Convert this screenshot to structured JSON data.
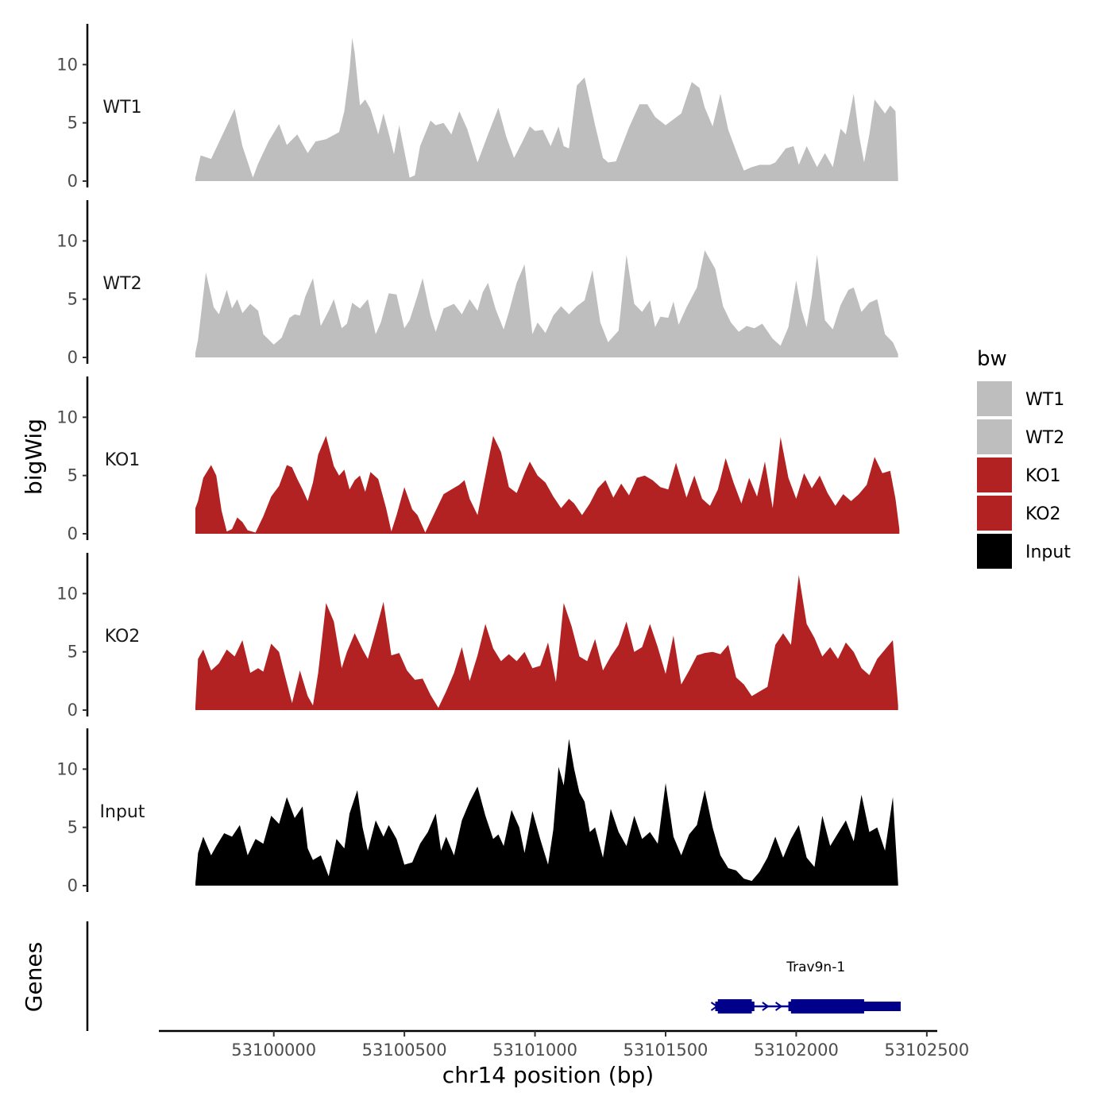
{
  "chart_data": {
    "type": "area",
    "x_axis": {
      "label": "chr14 position (bp)",
      "range": [
        53099560,
        53102540
      ],
      "ticks": [
        53100000,
        53100500,
        53101000,
        53101500,
        53102000,
        53102500
      ],
      "tick_labels": [
        "53100000",
        "53100500",
        "53101000",
        "53101500",
        "53102000",
        "53102500"
      ]
    },
    "y_axis": {
      "label": "bigWig",
      "range": [
        0,
        13.5
      ],
      "ticks": [
        0,
        5,
        10
      ],
      "tick_labels": [
        "0",
        "5",
        "10"
      ]
    },
    "genes_axis_label": "Genes",
    "legend": {
      "title": "bw",
      "entries": [
        {
          "label": "WT1",
          "color": "#bebebe"
        },
        {
          "label": "WT2",
          "color": "#bebebe"
        },
        {
          "label": "KO1",
          "color": "#b22222"
        },
        {
          "label": "KO2",
          "color": "#b22222"
        },
        {
          "label": "Input",
          "color": "#000000"
        }
      ]
    },
    "series": [
      {
        "name": "WT1",
        "color": "#bebebe",
        "x": [
          53099700,
          53099720,
          53099760,
          53099800,
          53099850,
          53099880,
          53099920,
          53099940,
          53099980,
          53100020,
          53100050,
          53100090,
          53100130,
          53100160,
          53100200,
          53100250,
          53100270,
          53100290,
          53100300,
          53100310,
          53100330,
          53100350,
          53100370,
          53100400,
          53100420,
          53100440,
          53100460,
          53100480,
          53100520,
          53100540,
          53100560,
          53100600,
          53100620,
          53100650,
          53100680,
          53100710,
          53100740,
          53100780,
          53100820,
          53100860,
          53100890,
          53100920,
          53100950,
          53100980,
          53101000,
          53101030,
          53101060,
          53101090,
          53101110,
          53101130,
          53101160,
          53101190,
          53101230,
          53101260,
          53101280,
          53101310,
          53101360,
          53101400,
          53101430,
          53101460,
          53101500,
          53101560,
          53101600,
          53101630,
          53101650,
          53101680,
          53101710,
          53101740,
          53101780,
          53101800,
          53101830,
          53101860,
          53101900,
          53101920,
          53101960,
          53101990,
          53102010,
          53102040,
          53102060,
          53102080,
          53102110,
          53102140,
          53102170,
          53102190,
          53102220,
          53102240,
          53102260,
          53102280,
          53102300,
          53102340,
          53102360,
          53102380,
          53102390
        ],
        "y": [
          0.3,
          2.2,
          1.9,
          3.8,
          6.2,
          3.0,
          0.3,
          1.5,
          3.4,
          4.9,
          3.1,
          4.0,
          2.4,
          3.4,
          3.6,
          4.2,
          6.0,
          9.5,
          12.3,
          11.0,
          6.5,
          7.0,
          6.2,
          4.0,
          5.8,
          4.1,
          2.3,
          4.8,
          0.3,
          0.5,
          3.0,
          5.2,
          4.8,
          5.0,
          4.0,
          6.0,
          4.5,
          1.6,
          4.0,
          6.3,
          3.8,
          2.0,
          3.3,
          4.7,
          4.3,
          4.4,
          3.0,
          4.7,
          3.0,
          2.8,
          8.2,
          8.9,
          4.8,
          2.0,
          1.6,
          1.7,
          4.6,
          6.6,
          6.6,
          5.5,
          4.8,
          5.8,
          8.5,
          8.0,
          6.3,
          4.7,
          7.5,
          4.4,
          2.0,
          0.9,
          1.2,
          1.4,
          1.4,
          1.6,
          2.8,
          3.0,
          1.4,
          3.0,
          2.1,
          1.2,
          2.4,
          1.2,
          4.5,
          4.0,
          7.5,
          4.0,
          1.6,
          4.0,
          7.0,
          5.8,
          6.5,
          6.0,
          0.2
        ]
      },
      {
        "name": "WT2",
        "color": "#bebebe",
        "x": [
          53099700,
          53099710,
          53099740,
          53099770,
          53099790,
          53099820,
          53099840,
          53099860,
          53099880,
          53099910,
          53099940,
          53099960,
          53100000,
          53100030,
          53100060,
          53100080,
          53100100,
          53100120,
          53100150,
          53100180,
          53100210,
          53100230,
          53100260,
          53100280,
          53100300,
          53100330,
          53100360,
          53100390,
          53100410,
          53100440,
          53100470,
          53100500,
          53100520,
          53100550,
          53100570,
          53100600,
          53100620,
          53100650,
          53100690,
          53100720,
          53100750,
          53100780,
          53100800,
          53100820,
          53100850,
          53100880,
          53100900,
          53100930,
          53100960,
          53100990,
          53101010,
          53101040,
          53101070,
          53101100,
          53101130,
          53101160,
          53101190,
          53101220,
          53101250,
          53101280,
          53101320,
          53101350,
          53101380,
          53101410,
          53101440,
          53101460,
          53101480,
          53101510,
          53101530,
          53101550,
          53101580,
          53101620,
          53101650,
          53101690,
          53101720,
          53101750,
          53101780,
          53101810,
          53101840,
          53101870,
          53101910,
          53101940,
          53101970,
          53102000,
          53102020,
          53102040,
          53102060,
          53102080,
          53102110,
          53102140,
          53102170,
          53102200,
          53102220,
          53102250,
          53102280,
          53102310,
          53102340,
          53102370,
          53102390
        ],
        "y": [
          0.4,
          1.5,
          7.3,
          4.3,
          3.7,
          5.8,
          4.2,
          5.0,
          3.8,
          4.6,
          4.0,
          2.0,
          1.1,
          1.7,
          3.4,
          3.7,
          3.6,
          5.2,
          6.8,
          2.7,
          4.0,
          5.0,
          2.5,
          2.9,
          4.7,
          4.2,
          5.0,
          2.0,
          3.0,
          5.5,
          5.4,
          2.5,
          3.2,
          5.3,
          6.8,
          3.6,
          2.2,
          4.2,
          4.6,
          3.7,
          5.0,
          4.0,
          5.6,
          6.4,
          4.1,
          2.4,
          3.9,
          6.4,
          8.0,
          2.0,
          3.0,
          2.1,
          3.6,
          4.4,
          3.7,
          4.4,
          4.9,
          7.5,
          3.0,
          1.3,
          2.3,
          8.8,
          4.6,
          3.9,
          4.9,
          2.6,
          3.5,
          3.4,
          4.8,
          2.8,
          4.3,
          6.0,
          9.2,
          7.6,
          4.4,
          3.0,
          2.2,
          2.7,
          2.5,
          2.9,
          1.6,
          1.0,
          2.6,
          6.6,
          4.1,
          2.6,
          5.2,
          8.8,
          3.2,
          2.4,
          4.5,
          5.8,
          6.0,
          3.9,
          4.7,
          5.0,
          2.0,
          1.3,
          0.3
        ]
      },
      {
        "name": "KO1",
        "color": "#b22222",
        "x": [
          53099700,
          53099710,
          53099730,
          53099760,
          53099780,
          53099800,
          53099820,
          53099840,
          53099860,
          53099880,
          53099900,
          53099930,
          53099960,
          53099990,
          53100020,
          53100050,
          53100070,
          53100090,
          53100110,
          53100130,
          53100150,
          53100170,
          53100200,
          53100230,
          53100250,
          53100270,
          53100290,
          53100310,
          53100330,
          53100350,
          53100370,
          53100400,
          53100430,
          53100450,
          53100470,
          53100500,
          53100530,
          53100550,
          53100580,
          53100620,
          53100650,
          53100680,
          53100710,
          53100730,
          53100750,
          53100780,
          53100810,
          53100840,
          53100870,
          53100900,
          53100930,
          53100960,
          53100980,
          53101010,
          53101040,
          53101070,
          53101100,
          53101130,
          53101150,
          53101180,
          53101210,
          53101240,
          53101270,
          53101300,
          53101330,
          53101360,
          53101390,
          53101420,
          53101450,
          53101480,
          53101510,
          53101540,
          53101580,
          53101610,
          53101640,
          53101670,
          53101700,
          53101730,
          53101760,
          53101790,
          53101820,
          53101850,
          53101880,
          53101910,
          53101940,
          53101970,
          53102000,
          53102030,
          53102060,
          53102090,
          53102120,
          53102150,
          53102180,
          53102210,
          53102240,
          53102270,
          53102300,
          53102330,
          53102360,
          53102380,
          53102395
        ],
        "y": [
          2.2,
          2.8,
          4.8,
          5.9,
          5.0,
          2.0,
          0.2,
          0.4,
          1.4,
          1.0,
          0.3,
          0.1,
          1.5,
          3.2,
          4.1,
          5.9,
          5.7,
          4.7,
          3.8,
          2.8,
          4.4,
          6.8,
          8.4,
          5.8,
          5.0,
          5.5,
          3.8,
          4.6,
          5.0,
          3.6,
          5.3,
          4.7,
          2.2,
          0.2,
          1.6,
          4.0,
          2.1,
          1.6,
          0.1,
          2.0,
          3.4,
          3.8,
          4.2,
          4.6,
          3.0,
          1.6,
          5.0,
          8.4,
          7.0,
          4.0,
          3.5,
          5.2,
          6.2,
          5.0,
          4.4,
          3.2,
          2.2,
          3.0,
          2.6,
          1.6,
          2.6,
          3.9,
          4.6,
          3.1,
          4.3,
          3.3,
          4.8,
          5.0,
          4.6,
          4.0,
          3.8,
          6.1,
          3.1,
          5.0,
          3.0,
          2.4,
          3.8,
          6.5,
          4.4,
          2.6,
          4.8,
          3.2,
          6.2,
          2.2,
          8.3,
          4.8,
          3.0,
          5.2,
          3.9,
          5.0,
          3.5,
          2.4,
          3.4,
          2.8,
          3.4,
          4.2,
          6.6,
          5.2,
          5.4,
          3.0,
          0.4
        ]
      },
      {
        "name": "KO2",
        "color": "#b22222",
        "x": [
          53099700,
          53099710,
          53099730,
          53099760,
          53099790,
          53099820,
          53099850,
          53099880,
          53099910,
          53099940,
          53099960,
          53099990,
          53100020,
          53100040,
          53100070,
          53100100,
          53100130,
          53100150,
          53100170,
          53100200,
          53100230,
          53100260,
          53100280,
          53100310,
          53100340,
          53100360,
          53100390,
          53100420,
          53100450,
          53100480,
          53100510,
          53100540,
          53100570,
          53100600,
          53100630,
          53100660,
          53100690,
          53100720,
          53100750,
          53100780,
          53100810,
          53100840,
          53100870,
          53100900,
          53100930,
          53100960,
          53100990,
          53101020,
          53101050,
          53101080,
          53101110,
          53101140,
          53101170,
          53101200,
          53101230,
          53101260,
          53101290,
          53101320,
          53101350,
          53101380,
          53101410,
          53101440,
          53101470,
          53101500,
          53101530,
          53101560,
          53101590,
          53101620,
          53101650,
          53101680,
          53101710,
          53101740,
          53101770,
          53101800,
          53101830,
          53101860,
          53101890,
          53101920,
          53101950,
          53101980,
          53102010,
          53102040,
          53102070,
          53102100,
          53102130,
          53102160,
          53102190,
          53102220,
          53102250,
          53102280,
          53102310,
          53102340,
          53102370,
          53102390
        ],
        "y": [
          0.3,
          4.4,
          5.2,
          3.4,
          4.0,
          5.2,
          4.6,
          6.0,
          3.2,
          3.6,
          3.3,
          5.7,
          5.0,
          3.2,
          0.6,
          3.4,
          1.2,
          0.4,
          3.2,
          9.2,
          7.6,
          3.6,
          5.0,
          6.6,
          5.2,
          4.4,
          6.8,
          9.3,
          4.7,
          4.9,
          3.4,
          2.6,
          2.7,
          1.3,
          0.2,
          1.6,
          3.2,
          5.4,
          2.5,
          4.7,
          7.4,
          5.3,
          4.2,
          4.8,
          4.2,
          5.0,
          3.6,
          3.8,
          5.8,
          2.4,
          9.2,
          7.2,
          4.6,
          4.2,
          6.1,
          3.4,
          4.6,
          5.6,
          7.6,
          5.0,
          5.4,
          7.4,
          5.4,
          3.1,
          6.4,
          2.2,
          3.4,
          4.7,
          4.9,
          5.0,
          4.8,
          5.6,
          2.8,
          2.2,
          1.2,
          1.6,
          2.0,
          5.6,
          6.6,
          5.6,
          11.6,
          7.4,
          6.2,
          4.6,
          5.4,
          4.4,
          5.8,
          5.0,
          3.6,
          3.0,
          4.4,
          5.2,
          6.0,
          0.4
        ]
      },
      {
        "name": "Input",
        "color": "#000000",
        "x": [
          53099700,
          53099710,
          53099730,
          53099760,
          53099780,
          53099810,
          53099840,
          53099870,
          53099900,
          53099930,
          53099960,
          53099990,
          53100020,
          53100050,
          53100080,
          53100110,
          53100130,
          53100150,
          53100180,
          53100210,
          53100240,
          53100270,
          53100290,
          53100320,
          53100340,
          53100360,
          53100390,
          53100420,
          53100440,
          53100470,
          53100500,
          53100530,
          53100560,
          53100590,
          53100620,
          53100640,
          53100660,
          53100690,
          53100720,
          53100750,
          53100780,
          53100810,
          53100840,
          53100860,
          53100880,
          53100910,
          53100940,
          53100960,
          53100990,
          53101020,
          53101050,
          53101070,
          53101090,
          53101110,
          53101130,
          53101150,
          53101170,
          53101190,
          53101210,
          53101230,
          53101260,
          53101290,
          53101320,
          53101350,
          53101380,
          53101410,
          53101440,
          53101470,
          53101500,
          53101530,
          53101560,
          53101590,
          53101620,
          53101650,
          53101680,
          53101710,
          53101740,
          53101770,
          53101800,
          53101830,
          53101860,
          53101890,
          53101920,
          53101950,
          53101980,
          53102010,
          53102040,
          53102070,
          53102100,
          53102130,
          53102160,
          53102190,
          53102220,
          53102250,
          53102280,
          53102310,
          53102340,
          53102370,
          53102390
        ],
        "y": [
          0.2,
          2.8,
          4.2,
          2.6,
          3.4,
          4.5,
          4.2,
          5.2,
          2.6,
          4.0,
          3.6,
          6.0,
          5.3,
          7.6,
          5.8,
          6.8,
          3.2,
          2.2,
          2.6,
          0.8,
          4.0,
          3.2,
          6.2,
          8.2,
          5.0,
          3.0,
          5.6,
          4.2,
          5.2,
          4.0,
          1.8,
          2.0,
          3.6,
          4.6,
          6.2,
          3.0,
          4.2,
          2.6,
          5.6,
          7.2,
          8.5,
          6.0,
          4.0,
          4.4,
          3.4,
          6.5,
          5.0,
          2.8,
          6.4,
          4.0,
          1.8,
          4.8,
          10.2,
          8.6,
          12.6,
          10.0,
          8.0,
          7.2,
          4.6,
          5.0,
          2.4,
          6.6,
          4.6,
          3.4,
          6.0,
          4.0,
          4.6,
          3.6,
          8.8,
          4.2,
          2.6,
          4.4,
          5.2,
          8.2,
          5.0,
          2.6,
          1.5,
          1.3,
          0.6,
          0.4,
          1.2,
          2.4,
          4.2,
          2.4,
          4.0,
          5.2,
          2.4,
          1.6,
          6.0,
          3.4,
          4.5,
          5.6,
          3.8,
          7.8,
          4.6,
          5.0,
          3.0,
          7.6,
          0.2
        ]
      }
    ],
    "genes": [
      {
        "name": "Trav9n-1",
        "strand": "+",
        "start": 53101690,
        "end": 53102400,
        "exons": [
          [
            53101690,
            53101840
          ],
          [
            53101970,
            53102400
          ]
        ],
        "cds": [
          [
            53101700,
            53101830
          ],
          [
            53101980,
            53102260
          ]
        ]
      }
    ]
  }
}
